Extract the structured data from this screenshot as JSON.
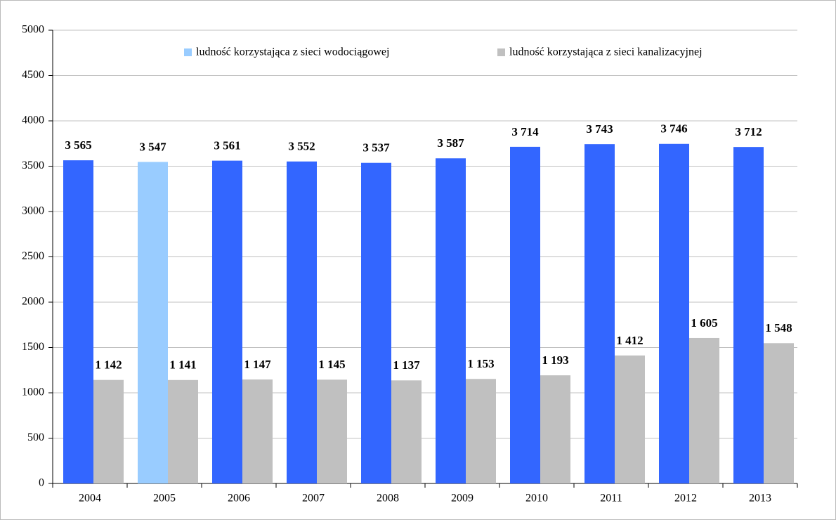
{
  "chart_data": {
    "type": "bar",
    "categories": [
      "2004",
      "2005",
      "2006",
      "2007",
      "2008",
      "2009",
      "2010",
      "2011",
      "2012",
      "2013"
    ],
    "series": [
      {
        "name": "ludność korzystająca z sieci wodociągowej",
        "color": "#99ccff",
        "colors": [
          "#3366ff",
          "#99ccff",
          "#3366ff",
          "#3366ff",
          "#3366ff",
          "#3366ff",
          "#3366ff",
          "#3366ff",
          "#3366ff",
          "#3366ff"
        ],
        "values": [
          3565,
          3547,
          3561,
          3552,
          3537,
          3587,
          3714,
          3743,
          3746,
          3712
        ],
        "value_labels": [
          "3 565",
          "3 547",
          "3 561",
          "3 552",
          "3 537",
          "3 587",
          "3 714",
          "3 743",
          "3 746",
          "3 712"
        ]
      },
      {
        "name": "ludność korzystająca z  sieci kanalizacyjnej",
        "color": "#c0c0c0",
        "values": [
          1142,
          1141,
          1147,
          1145,
          1137,
          1153,
          1193,
          1412,
          1605,
          1548
        ],
        "value_labels": [
          "1 142",
          "1 141",
          "1 147",
          "1 145",
          "1 137",
          "1 153",
          "1 193",
          "1 412",
          "1 605",
          "1 548"
        ]
      }
    ],
    "ylim": [
      0,
      5000
    ],
    "yticks": [
      0,
      500,
      1000,
      1500,
      2000,
      2500,
      3000,
      3500,
      4000,
      4500,
      5000
    ],
    "grid": true,
    "legend": "top"
  }
}
